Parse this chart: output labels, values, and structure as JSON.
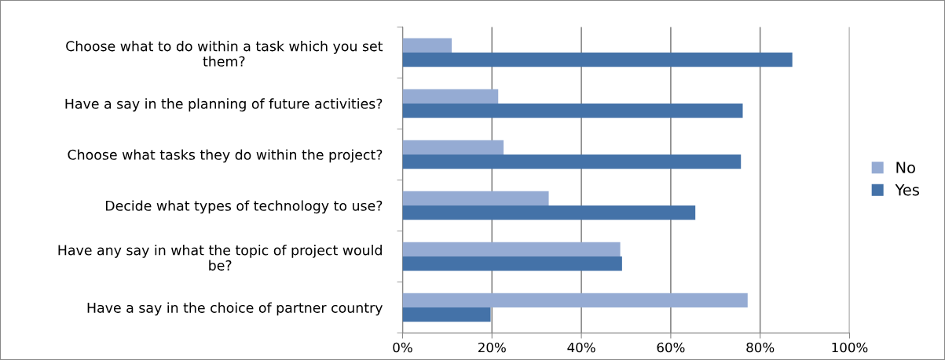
{
  "chart_data": {
    "type": "bar",
    "orientation": "horizontal",
    "categories": [
      "Choose what to do within a task which you set\nthem?",
      "Have a say in the planning of future activities?",
      "Choose what tasks they do within the project?",
      "Decide what types of technology to use?",
      "Have any say in what the topic of project would\nbe?",
      "Have a say in the choice of partner country"
    ],
    "series": [
      {
        "name": "No",
        "color": "#95abd3",
        "values": [
          11.0,
          21.4,
          22.6,
          32.7,
          48.7,
          77.2
        ]
      },
      {
        "name": "Yes",
        "color": "#4472a8",
        "values": [
          87.2,
          76.1,
          75.7,
          65.5,
          49.1,
          19.7
        ]
      }
    ],
    "xlim": [
      0,
      100
    ],
    "xticks": [
      {
        "value": 0,
        "label": "0%"
      },
      {
        "value": 20,
        "label": "20%"
      },
      {
        "value": 40,
        "label": "40%"
      },
      {
        "value": 60,
        "label": "60%"
      },
      {
        "value": 80,
        "label": "80%"
      },
      {
        "value": 100,
        "label": "100%"
      }
    ],
    "grid": "x",
    "legend": "right"
  }
}
